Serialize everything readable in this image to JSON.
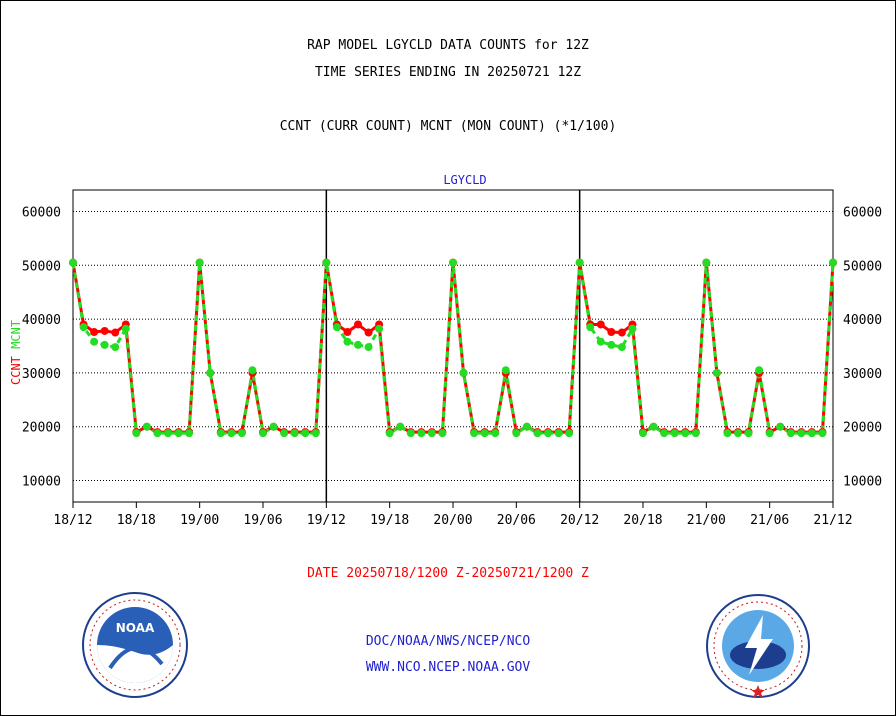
{
  "chart_data": {
    "type": "line",
    "title": "RAP MODEL LGYCLD DATA COUNTS for 12Z",
    "subtitle": "TIME SERIES ENDING IN 20250721 12Z",
    "legend_note": "CCNT (CURR COUNT) MCNT (MON COUNT) (*1/100)",
    "panel_label": "LGYCLD",
    "xlabel": "DATE 20250718/1200 Z-20250721/1200 Z",
    "ylabel_series": [
      "CCNT",
      "MCNT"
    ],
    "ylim": [
      6000,
      64000
    ],
    "yticks": [
      "10000",
      "20000",
      "30000",
      "40000",
      "50000",
      "60000"
    ],
    "ytick_values": [
      10000,
      20000,
      30000,
      40000,
      50000,
      60000
    ],
    "xticks": [
      "18/12",
      "18/18",
      "19/00",
      "19/06",
      "19/12",
      "19/18",
      "20/00",
      "20/06",
      "20/12",
      "20/18",
      "21/00",
      "21/06",
      "21/12"
    ],
    "x_hours": [
      0,
      6,
      12,
      18,
      24,
      30,
      36,
      42,
      48,
      54,
      60,
      66,
      72
    ],
    "day_separators_hours": [
      24,
      48
    ],
    "series": [
      {
        "name": "CCNT",
        "color": "#ff0000",
        "x": [
          0,
          1,
          2,
          3,
          4,
          5,
          6,
          7,
          8,
          9,
          10,
          11,
          12,
          13,
          14,
          15,
          16,
          17,
          18,
          19,
          20,
          21,
          22,
          23,
          24,
          25,
          26,
          27,
          28,
          29,
          30,
          31,
          32,
          33,
          34,
          35,
          36,
          37,
          38,
          39,
          40,
          41,
          42,
          43,
          44,
          45,
          46,
          47,
          48,
          49,
          50,
          51,
          52,
          53,
          54,
          55,
          56,
          57,
          58,
          59,
          60,
          61,
          62,
          63,
          64,
          65,
          66,
          67,
          68,
          69,
          70,
          71,
          72
        ],
        "values": [
          50500,
          39000,
          37600,
          37800,
          37500,
          39000,
          19000,
          20000,
          19000,
          19000,
          19000,
          19000,
          50500,
          30000,
          19000,
          19000,
          19000,
          30000,
          19000,
          20000,
          19000,
          19000,
          19000,
          19000,
          50500,
          39000,
          37600,
          39000,
          37500,
          39000,
          19000,
          20000,
          19000,
          19000,
          19000,
          19000,
          50500,
          30000,
          19000,
          19000,
          19000,
          30000,
          19000,
          20000,
          19000,
          19000,
          19000,
          19000,
          50500,
          39000,
          39000,
          37600,
          37500,
          39000,
          19000,
          20000,
          19000,
          19000,
          19000,
          19000,
          50500,
          30000,
          19000,
          19000,
          19000,
          30000,
          19000,
          20000,
          19000,
          19000,
          19000,
          19000,
          50500
        ]
      },
      {
        "name": "MCNT",
        "color": "#22dd22",
        "x": [
          0,
          1,
          2,
          3,
          4,
          5,
          6,
          7,
          8,
          9,
          10,
          11,
          12,
          13,
          14,
          15,
          16,
          17,
          18,
          19,
          20,
          21,
          22,
          23,
          24,
          25,
          26,
          27,
          28,
          29,
          30,
          31,
          32,
          33,
          34,
          35,
          36,
          37,
          38,
          39,
          40,
          41,
          42,
          43,
          44,
          45,
          46,
          47,
          48,
          49,
          50,
          51,
          52,
          53,
          54,
          55,
          56,
          57,
          58,
          59,
          60,
          61,
          62,
          63,
          64,
          65,
          66,
          67,
          68,
          69,
          70,
          71,
          72
        ],
        "values": [
          50500,
          38500,
          35800,
          35200,
          34800,
          38200,
          18800,
          20000,
          18800,
          18800,
          18800,
          18800,
          50500,
          30000,
          18800,
          18800,
          18800,
          30500,
          18800,
          20000,
          18800,
          18800,
          18800,
          18800,
          50500,
          38500,
          35800,
          35200,
          34800,
          38200,
          18800,
          20000,
          18800,
          18800,
          18800,
          18800,
          50500,
          30000,
          18800,
          18800,
          18800,
          30500,
          18800,
          20000,
          18800,
          18800,
          18800,
          18800,
          50500,
          38500,
          35800,
          35200,
          34800,
          38200,
          18800,
          20000,
          18800,
          18800,
          18800,
          18800,
          50500,
          30000,
          18800,
          18800,
          18800,
          30500,
          18800,
          20000,
          18800,
          18800,
          18800,
          18800,
          50500
        ]
      }
    ]
  },
  "footer": {
    "agency": "DOC/NOAA/NWS/NCEP/NCO",
    "url": "WWW.NCO.NCEP.NOAA.GOV"
  },
  "colors": {
    "label_blue": "#1f1fd0",
    "label_red": "#ff0000",
    "mcnt_green": "#22dd22"
  }
}
